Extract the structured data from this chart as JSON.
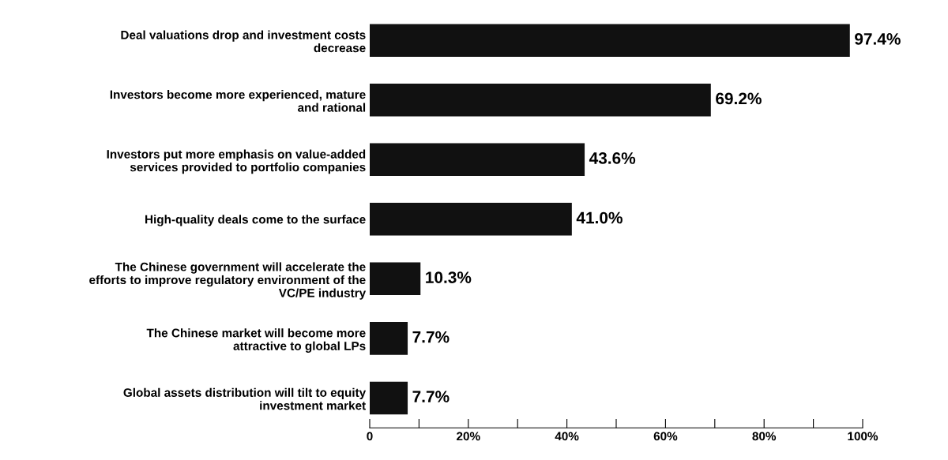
{
  "chart_data": {
    "type": "bar",
    "orientation": "horizontal",
    "categories": [
      "Deal valuations drop and investment costs\ndecrease",
      "Investors become more experienced, mature\nand rational",
      "Investors put more emphasis on value-added\nservices provided to portfolio companies",
      "High-quality deals come to the surface",
      "The Chinese government will accelerate the\nefforts to improve regulatory environment of the\nVC/PE industry",
      "The Chinese market will become more\nattractive to global LPs",
      "Global assets distribution will tilt to equity\ninvestment market"
    ],
    "values": [
      97.4,
      69.2,
      43.6,
      41.0,
      10.3,
      7.7,
      7.7
    ],
    "value_labels": [
      "97.4%",
      "69.2%",
      "43.6%",
      "41.0%",
      "10.3%",
      "7.7%",
      "7.7%"
    ],
    "color": "#111111",
    "xlim": [
      0,
      100
    ],
    "xticks": [
      0,
      {
        "value": 10,
        "label": null
      },
      {
        "value": 20,
        "label": "20%"
      },
      {
        "value": 30,
        "label": null
      },
      {
        "value": 40,
        "label": "40%"
      },
      {
        "value": 50,
        "label": null
      },
      {
        "value": 60,
        "label": "60%"
      },
      {
        "value": 70,
        "label": null
      },
      {
        "value": 80,
        "label": "80%"
      },
      {
        "value": 90,
        "label": null
      },
      {
        "value": 100,
        "label": "100%"
      }
    ],
    "grid": false,
    "legend": false
  }
}
